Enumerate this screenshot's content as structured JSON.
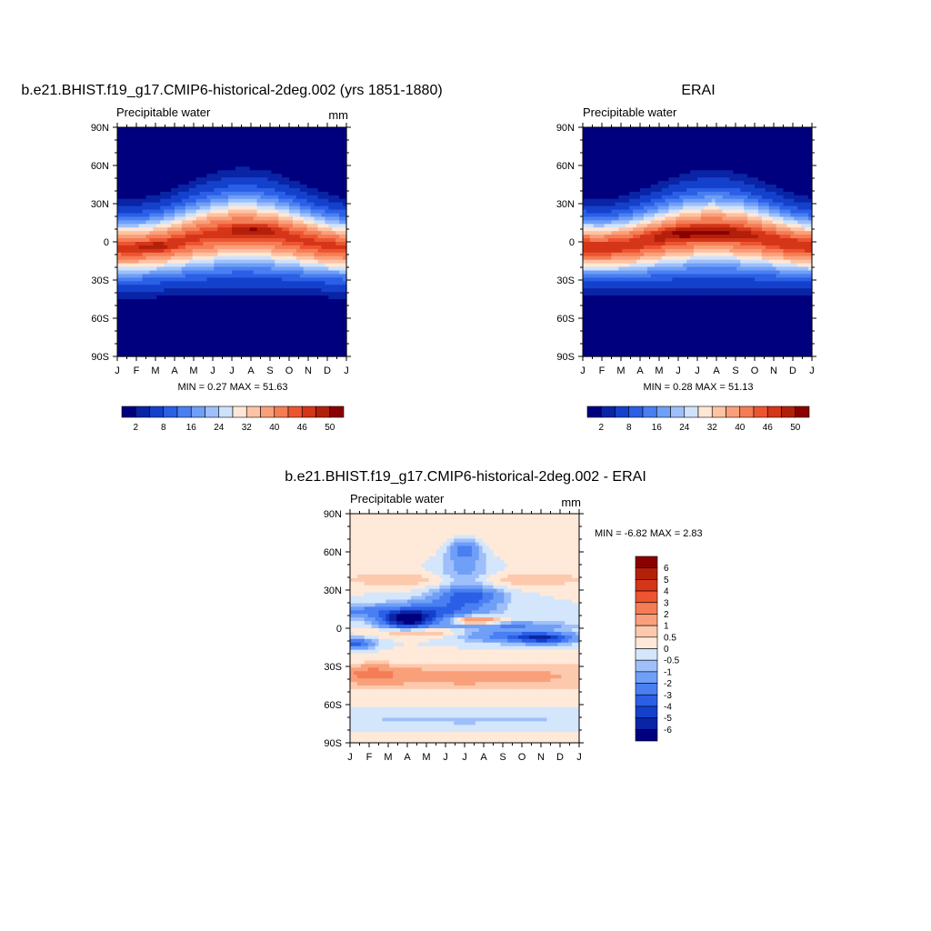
{
  "panels": [
    {
      "id": "model",
      "title": "b.e21.BHIST.f19_g17.CMIP6-historical-2deg.002 (yrs 1851-1880)",
      "subtitle": "Precipitable water",
      "units": "mm",
      "minmax": "MIN =   0.27 MAX =  51.63"
    },
    {
      "id": "obs",
      "title": "ERAI",
      "subtitle": "Precipitable water",
      "units": "",
      "minmax": "MIN =   0.28 MAX =  51.13"
    },
    {
      "id": "diff",
      "title": "b.e21.BHIST.f19_g17.CMIP6-historical-2deg.002 - ERAI",
      "subtitle": "Precipitable water",
      "units": "mm",
      "minmax": "MIN =  -6.82 MAX =   2.83"
    }
  ],
  "palettes": {
    "full": [
      "#00007f",
      "#0a24a6",
      "#1441cc",
      "#2a5fe6",
      "#4a7ff2",
      "#6f9ff7",
      "#9ebff9",
      "#cfe2fb",
      "#ffe7d6",
      "#fcc3a4",
      "#f9a07a",
      "#f47d56",
      "#ec5530",
      "#d53518",
      "#b3200a",
      "#8b0000"
    ],
    "diff": [
      "#00007f",
      "#0a24a6",
      "#1441cc",
      "#2a5fe6",
      "#4a7ff2",
      "#6f9ff7",
      "#9ebff9",
      "#d4e6fb",
      "#ffe9d9",
      "#fdc9ad",
      "#f9a07a",
      "#f47d56",
      "#ec5530",
      "#d53518",
      "#b3200a",
      "#8b0000"
    ]
  },
  "chart_data": [
    {
      "type": "heatmap",
      "panel": "model",
      "x_ticks": [
        "J",
        "F",
        "M",
        "A",
        "M",
        "J",
        "J",
        "A",
        "S",
        "O",
        "N",
        "D",
        "J"
      ],
      "y_ticks": [
        "90N",
        "60N",
        "30N",
        "0",
        "30S",
        "60S",
        "90S"
      ],
      "ylim": [
        -90,
        90
      ],
      "colorbar": {
        "orientation": "horizontal",
        "levels": [
          2,
          4,
          8,
          12,
          16,
          20,
          24,
          28,
          32,
          36,
          40,
          44,
          46,
          48,
          50
        ],
        "labels": [
          "2",
          "8",
          "16",
          "24",
          "32",
          "40",
          "46",
          "50"
        ]
      },
      "min": 0.27,
      "max": 51.63
    },
    {
      "type": "heatmap",
      "panel": "obs",
      "x_ticks": [
        "J",
        "F",
        "M",
        "A",
        "M",
        "J",
        "J",
        "A",
        "S",
        "O",
        "N",
        "D",
        "J"
      ],
      "y_ticks": [
        "90N",
        "60N",
        "30N",
        "0",
        "30S",
        "60S",
        "90S"
      ],
      "ylim": [
        -90,
        90
      ],
      "colorbar": {
        "orientation": "horizontal",
        "levels": [
          2,
          4,
          8,
          12,
          16,
          20,
          24,
          28,
          32,
          36,
          40,
          44,
          46,
          48,
          50
        ],
        "labels": [
          "2",
          "8",
          "16",
          "24",
          "32",
          "40",
          "46",
          "50"
        ]
      },
      "min": 0.28,
      "max": 51.13
    },
    {
      "type": "heatmap",
      "panel": "diff",
      "x_ticks": [
        "J",
        "F",
        "M",
        "A",
        "M",
        "J",
        "J",
        "A",
        "S",
        "O",
        "N",
        "D",
        "J"
      ],
      "y_ticks": [
        "90N",
        "60N",
        "30N",
        "0",
        "30S",
        "60S",
        "90S"
      ],
      "ylim": [
        -90,
        90
      ],
      "colorbar": {
        "orientation": "vertical",
        "levels": [
          -6,
          -5,
          -4,
          -3,
          -2,
          -1,
          -0.5,
          0,
          0.5,
          1,
          2,
          3,
          4,
          5,
          6
        ],
        "labels": [
          "6",
          "5",
          "4",
          "3",
          "2",
          "1",
          "0.5",
          "0",
          "-0.5",
          "-1",
          "-2",
          "-3",
          "-4",
          "-5",
          "-6"
        ]
      },
      "min": -6.82,
      "max": 2.83
    }
  ]
}
